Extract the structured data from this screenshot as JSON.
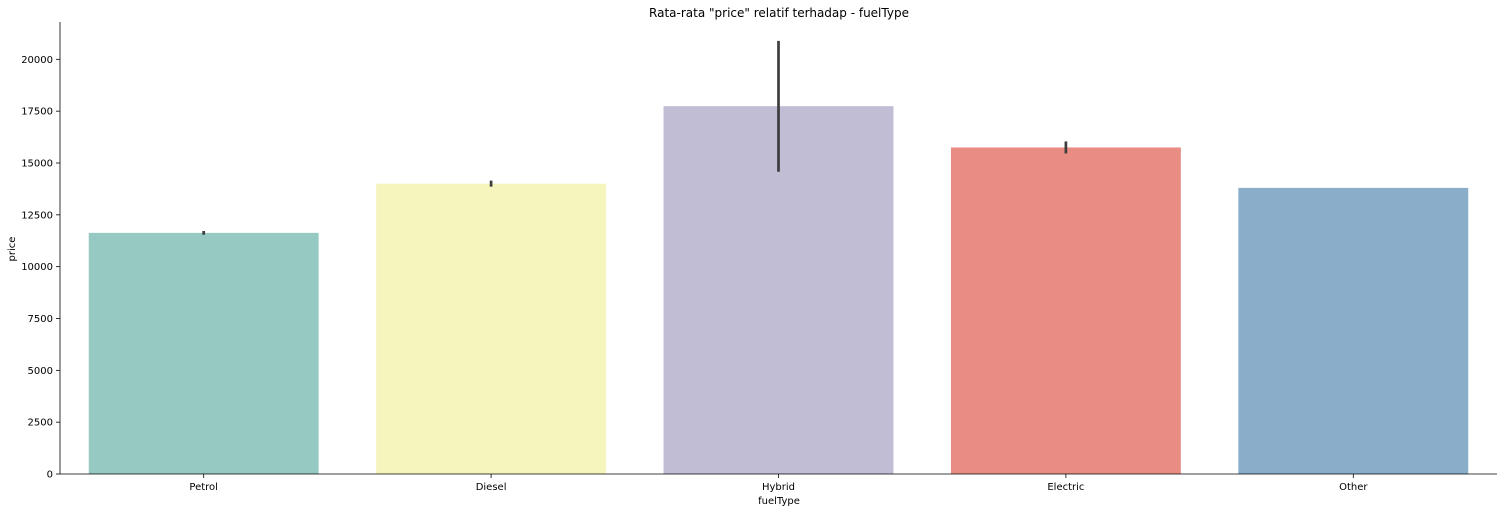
{
  "chart_data": {
    "type": "bar",
    "title": "Rata-rata \"price\" relatif terhadap - fuelType",
    "xlabel": "fuelType",
    "ylabel": "price",
    "categories": [
      "Petrol",
      "Diesel",
      "Hybrid",
      "Electric",
      "Other"
    ],
    "values": [
      11630,
      14000,
      17740,
      15750,
      13800
    ],
    "error_bars": [
      [
        11540,
        11720
      ],
      [
        13860,
        14150
      ],
      [
        14580,
        20890
      ],
      [
        15460,
        16040
      ],
      null
    ],
    "colors": [
      "#96c9c1",
      "#f6f5bd",
      "#c1bdd5",
      "#e98d84",
      "#8aaec9"
    ],
    "error_color": "#3d3d3d",
    "ylim": [
      0,
      21800
    ],
    "yticks": [
      0,
      2500,
      5000,
      7500,
      10000,
      12500,
      15000,
      17500,
      20000
    ],
    "ytick_labels": [
      "0",
      "2500",
      "5000",
      "7500",
      "10000",
      "12500",
      "15000",
      "17500",
      "20000"
    ],
    "grid": false,
    "spines": "left-bottom"
  }
}
